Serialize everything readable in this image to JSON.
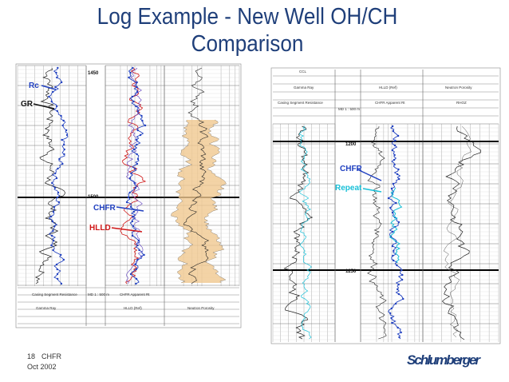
{
  "title": "Log Example - New Well OH/CH Comparison",
  "left_log": {
    "depths": [
      "1450",
      "1500"
    ],
    "annotations": {
      "rc": "Rc",
      "gr": "GR",
      "chfr": "CHFR",
      "hlld": "HLLD"
    },
    "headers": [
      "Casing Segment Resistance",
      "Gamma Ray",
      "CHFR Apparent Rt",
      "HLLD (Ref)",
      "Neutron Porosity"
    ],
    "depth_header": "MD 1 : 500 m"
  },
  "right_log": {
    "depths": [
      "1200",
      "1250"
    ],
    "annotations": {
      "chfr": "CHFR",
      "repeat": "Repeat"
    },
    "headers": [
      "CCL",
      "Gamma Ray",
      "Casing Segment Resistance",
      "HLLD (Ref)",
      "CHFR Apparent Rt",
      "Neutron Porosity",
      "RHOZ"
    ],
    "depth_header": "MD 1 : 500 m"
  },
  "footer": {
    "page": "18",
    "topic": "CHFR",
    "date": "Oct 2002"
  },
  "logo": "Schlumberger"
}
